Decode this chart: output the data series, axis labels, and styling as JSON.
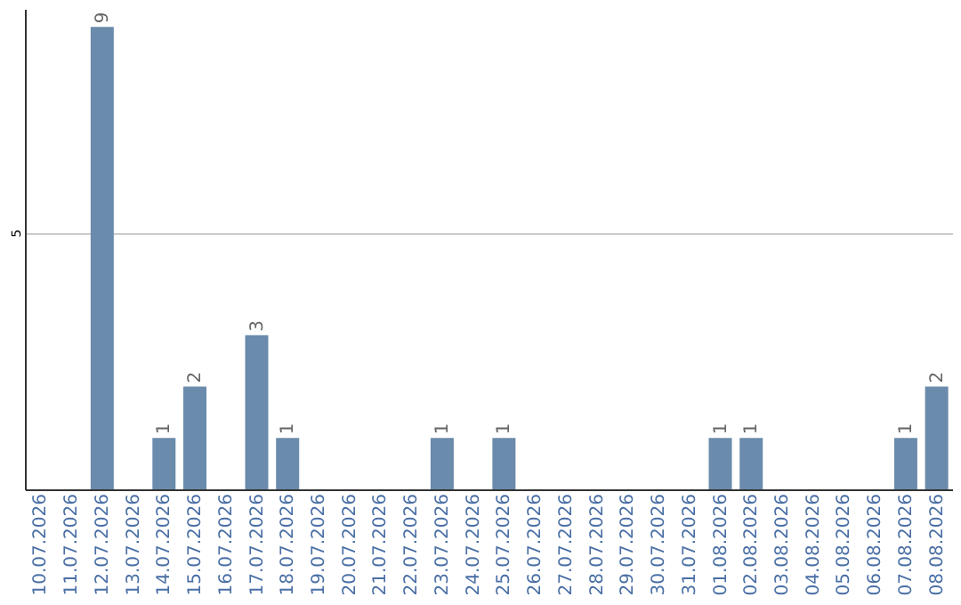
{
  "chart_data": {
    "type": "bar",
    "categories": [
      "10.07.2026",
      "11.07.2026",
      "12.07.2026",
      "13.07.2026",
      "14.07.2026",
      "15.07.2026",
      "16.07.2026",
      "17.07.2026",
      "18.07.2026",
      "19.07.2026",
      "20.07.2026",
      "21.07.2026",
      "22.07.2026",
      "23.07.2026",
      "24.07.2026",
      "25.07.2026",
      "26.07.2026",
      "27.07.2026",
      "28.07.2026",
      "29.07.2026",
      "30.07.2026",
      "31.07.2026",
      "01.08.2026",
      "02.08.2026",
      "03.08.2026",
      "04.08.2026",
      "05.08.2026",
      "06.08.2026",
      "07.08.2026",
      "08.08.2026"
    ],
    "values": [
      0,
      0,
      9,
      0,
      1,
      2,
      0,
      3,
      1,
      0,
      0,
      0,
      0,
      1,
      0,
      1,
      0,
      0,
      0,
      0,
      0,
      0,
      1,
      1,
      0,
      0,
      0,
      0,
      1,
      2
    ],
    "value_labels": [
      null,
      null,
      "9",
      null,
      "1",
      "2",
      null,
      "3",
      "1",
      null,
      null,
      null,
      null,
      "1",
      null,
      "1",
      null,
      null,
      null,
      null,
      null,
      null,
      "1",
      "1",
      null,
      null,
      null,
      null,
      "1",
      "2"
    ],
    "color": "#6a8bab",
    "ylim": [
      0,
      9.35
    ],
    "yticks": [
      5
    ],
    "grid": "y"
  }
}
